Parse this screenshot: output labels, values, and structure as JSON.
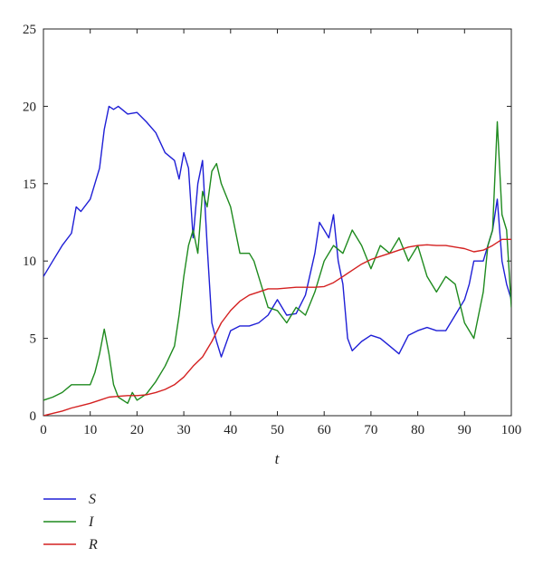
{
  "chart_data": {
    "type": "line",
    "xlabel": "t",
    "ylabel": "",
    "xlim": [
      0,
      100
    ],
    "ylim": [
      0,
      25
    ],
    "xticks": [
      "0",
      "10",
      "20",
      "30",
      "40",
      "50",
      "60",
      "70",
      "80",
      "90",
      "100"
    ],
    "yticks": [
      "0",
      "5",
      "10",
      "15",
      "20",
      "25"
    ],
    "legend_position": "bottom-left, below plot",
    "grid": false,
    "series": [
      {
        "name": "S",
        "color": "#1f1fd6",
        "x": [
          0,
          2,
          4,
          6,
          7,
          8,
          10,
          12,
          13,
          14,
          15,
          16,
          18,
          20,
          22,
          24,
          26,
          28,
          29,
          30,
          31,
          32,
          33,
          34,
          35,
          36,
          37,
          38,
          40,
          42,
          44,
          46,
          48,
          50,
          52,
          54,
          56,
          58,
          59,
          60,
          61,
          62,
          63,
          64,
          65,
          66,
          68,
          70,
          72,
          74,
          76,
          78,
          80,
          82,
          84,
          86,
          88,
          90,
          91,
          92,
          94,
          95,
          96,
          97,
          98,
          99,
          100
        ],
        "y": [
          9.0,
          10.0,
          11.0,
          11.8,
          13.5,
          13.2,
          14.0,
          16.0,
          18.5,
          20.0,
          19.8,
          20.0,
          19.5,
          19.6,
          19.0,
          18.3,
          17.0,
          16.5,
          15.3,
          17.0,
          16.0,
          11.5,
          15.0,
          16.5,
          11.0,
          6.0,
          4.8,
          3.8,
          5.5,
          5.8,
          5.8,
          6.0,
          6.5,
          7.5,
          6.5,
          6.6,
          7.8,
          10.5,
          12.5,
          12.0,
          11.5,
          13.0,
          10.0,
          8.5,
          5.0,
          4.2,
          4.8,
          5.2,
          5.0,
          4.5,
          4.0,
          5.2,
          5.5,
          5.7,
          5.5,
          5.5,
          6.5,
          7.5,
          8.5,
          10.0,
          10.0,
          11.0,
          12.0,
          14.0,
          10.0,
          8.5,
          7.5
        ]
      },
      {
        "name": "I",
        "color": "#1e8a1e",
        "x": [
          0,
          2,
          4,
          6,
          8,
          10,
          11,
          12,
          13,
          14,
          15,
          16,
          18,
          19,
          20,
          22,
          24,
          26,
          28,
          29,
          30,
          31,
          32,
          33,
          34,
          35,
          36,
          37,
          38,
          40,
          42,
          44,
          45,
          46,
          48,
          50,
          52,
          54,
          56,
          58,
          60,
          62,
          64,
          66,
          68,
          70,
          72,
          74,
          76,
          78,
          80,
          82,
          84,
          86,
          88,
          90,
          91,
          92,
          93,
          94,
          95,
          96,
          97,
          98,
          99,
          100
        ],
        "y": [
          1.0,
          1.2,
          1.5,
          2.0,
          2.0,
          2.0,
          2.8,
          4.0,
          5.6,
          4.0,
          2.0,
          1.2,
          0.8,
          1.5,
          1.0,
          1.4,
          2.2,
          3.2,
          4.5,
          6.5,
          9.0,
          11.0,
          12.0,
          10.5,
          14.5,
          13.5,
          15.8,
          16.3,
          15.0,
          13.5,
          10.5,
          10.5,
          10.0,
          9.0,
          7.0,
          6.8,
          6.0,
          7.0,
          6.5,
          8.0,
          10.0,
          11.0,
          10.5,
          12.0,
          11.0,
          9.5,
          11.0,
          10.5,
          11.5,
          10.0,
          11.0,
          9.0,
          8.0,
          9.0,
          8.5,
          6.0,
          5.5,
          5.0,
          6.5,
          8.0,
          11.0,
          12.0,
          19.0,
          13.0,
          12.0,
          7.0
        ]
      },
      {
        "name": "R",
        "color": "#d42020",
        "x": [
          0,
          2,
          4,
          6,
          8,
          10,
          12,
          14,
          16,
          18,
          20,
          22,
          24,
          26,
          28,
          30,
          32,
          34,
          36,
          38,
          40,
          42,
          44,
          46,
          48,
          50,
          52,
          54,
          56,
          58,
          60,
          62,
          64,
          66,
          68,
          70,
          72,
          74,
          76,
          78,
          80,
          82,
          84,
          86,
          88,
          90,
          92,
          94,
          96,
          98,
          100
        ],
        "y": [
          0.0,
          0.15,
          0.3,
          0.5,
          0.65,
          0.8,
          1.0,
          1.2,
          1.25,
          1.3,
          1.3,
          1.35,
          1.5,
          1.7,
          2.0,
          2.5,
          3.2,
          3.8,
          4.8,
          6.0,
          6.8,
          7.4,
          7.8,
          8.0,
          8.2,
          8.2,
          8.25,
          8.3,
          8.3,
          8.3,
          8.35,
          8.6,
          9.0,
          9.4,
          9.8,
          10.1,
          10.3,
          10.5,
          10.7,
          10.9,
          11.0,
          11.05,
          11.0,
          11.0,
          10.9,
          10.8,
          10.6,
          10.7,
          11.0,
          11.4,
          11.4
        ]
      }
    ]
  }
}
